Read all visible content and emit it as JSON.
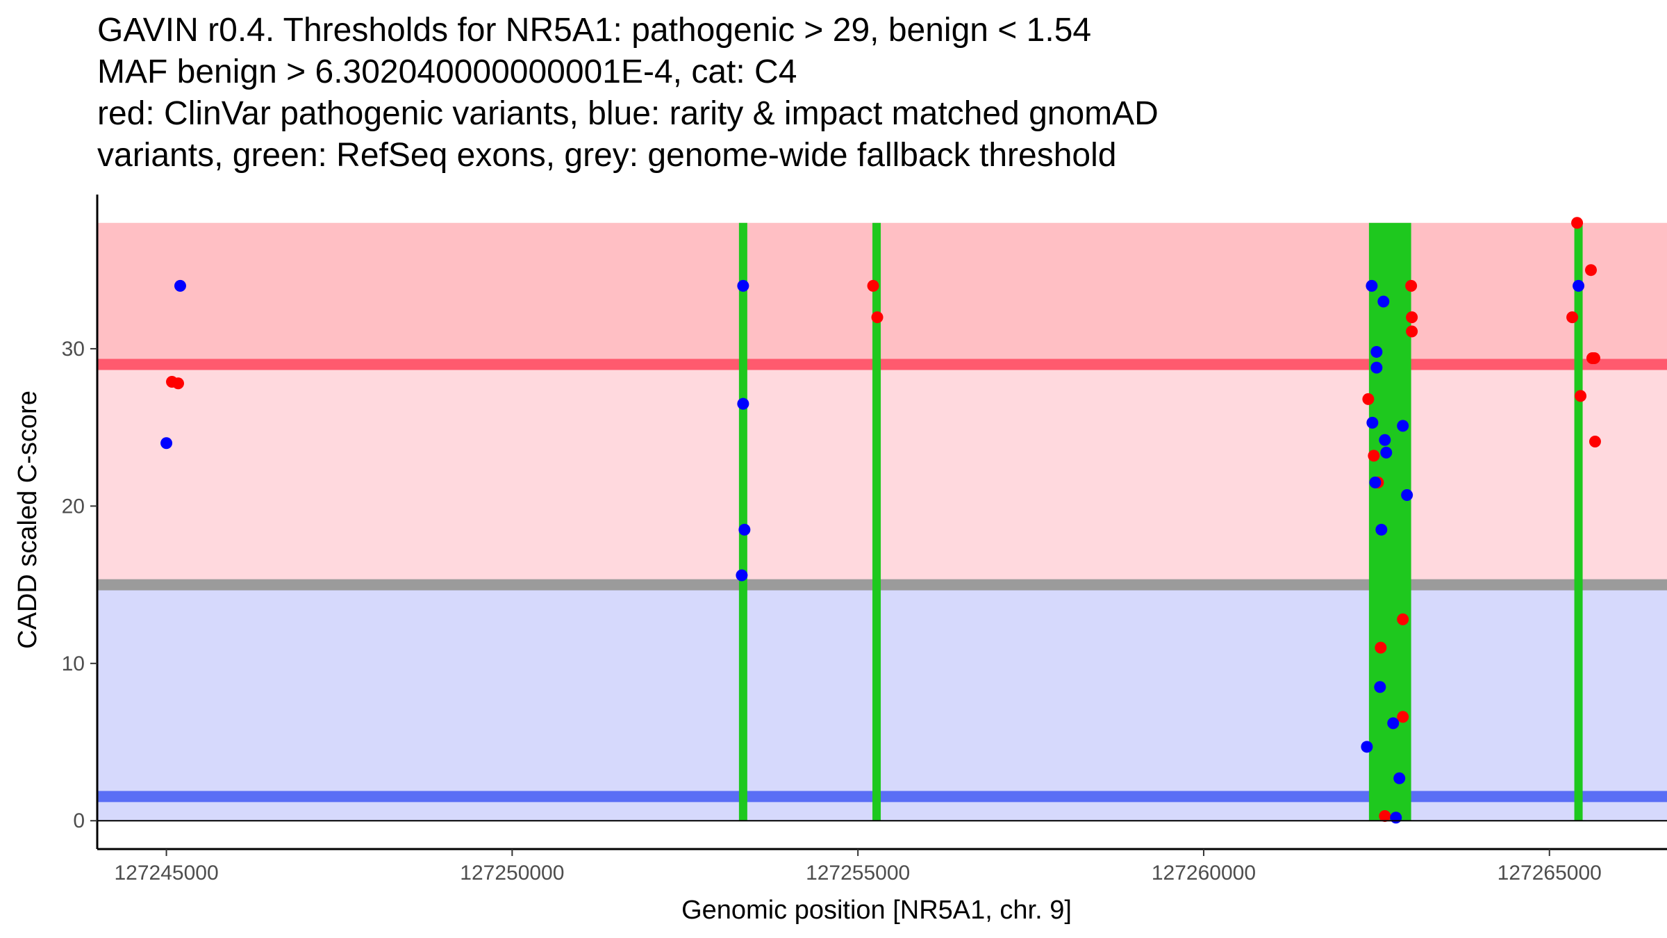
{
  "chart_data": {
    "type": "scatter",
    "title_lines": [
      "GAVIN r0.4. Thresholds for NR5A1: pathogenic > 29, benign < 1.54",
      "MAF benign > 6.302040000000001E-4, cat: C4",
      "red: ClinVar pathogenic variants, blue: rarity & impact matched gnomAD",
      "variants, green: RefSeq exons, grey: genome-wide fallback threshold"
    ],
    "xlabel": "Genomic position [NR5A1, chr. 9]",
    "ylabel": "CADD scaled C-score",
    "xlim": [
      127244000,
      127266700
    ],
    "ylim": [
      -1.8,
      39.8
    ],
    "x_ticks": [
      127245000,
      127250000,
      127255000,
      127260000,
      127265000
    ],
    "y_ticks": [
      0,
      10,
      20,
      30
    ],
    "x_tick_labels": [
      "127245000",
      "127250000",
      "127255000",
      "127260000",
      "127265000"
    ],
    "y_tick_labels": [
      "0",
      "10",
      "20",
      "30"
    ],
    "colors": {
      "pathogenic_region": "#ffbfc4",
      "vus_region": "#ffd9de",
      "benign_region": "#d6d9fc",
      "pathogenic_line": "#ff5a6e",
      "fallback_line": "#9b9b9b",
      "benign_line": "#5a6ef5",
      "exon": "#1ec81e",
      "clinvar_point": "#ff0000",
      "gnomad_point": "#0000ff"
    },
    "regions": [
      {
        "name": "pathogenic",
        "y0": 29.0,
        "y1": 38.0
      },
      {
        "name": "vus",
        "y0": 15.0,
        "y1": 29.0
      },
      {
        "name": "benign",
        "y0": 0.0,
        "y1": 15.0
      }
    ],
    "thresholds": [
      {
        "name": "pathogenic",
        "y": 29.0
      },
      {
        "name": "genome-wide fallback",
        "y": 15.0
      },
      {
        "name": "benign",
        "y": 1.54
      }
    ],
    "exons": [
      {
        "start": 127253280,
        "end": 127253400
      },
      {
        "start": 127255210,
        "end": 127255330
      },
      {
        "start": 127262390,
        "end": 127263000
      },
      {
        "start": 127265360,
        "end": 127265480
      }
    ],
    "series": [
      {
        "name": "ClinVar pathogenic",
        "points": [
          [
            127245080,
            27.9
          ],
          [
            127245170,
            27.8
          ],
          [
            127255220,
            34.0
          ],
          [
            127255280,
            32.0
          ],
          [
            127262380,
            26.8
          ],
          [
            127262460,
            23.2
          ],
          [
            127262520,
            21.5
          ],
          [
            127262560,
            11.0
          ],
          [
            127262620,
            0.3
          ],
          [
            127262880,
            12.8
          ],
          [
            127262880,
            6.6
          ],
          [
            127263000,
            34.0
          ],
          [
            127263010,
            32.0
          ],
          [
            127263010,
            31.1
          ],
          [
            127265330,
            32.0
          ],
          [
            127265400,
            38.0
          ],
          [
            127265450,
            27.0
          ],
          [
            127265600,
            35.0
          ],
          [
            127265620,
            29.4
          ],
          [
            127265650,
            29.4
          ],
          [
            127265660,
            24.1
          ]
        ]
      },
      {
        "name": "gnomAD matched",
        "points": [
          [
            127245000,
            24.0
          ],
          [
            127245200,
            34.0
          ],
          [
            127253340,
            34.0
          ],
          [
            127253340,
            26.5
          ],
          [
            127253360,
            18.5
          ],
          [
            127253320,
            15.6
          ],
          [
            127262430,
            34.0
          ],
          [
            127262440,
            25.3
          ],
          [
            127262480,
            21.5
          ],
          [
            127262500,
            29.8
          ],
          [
            127262500,
            28.8
          ],
          [
            127262550,
            8.5
          ],
          [
            127262570,
            18.5
          ],
          [
            127262600,
            33.0
          ],
          [
            127262620,
            24.2
          ],
          [
            127262640,
            23.4
          ],
          [
            127262740,
            6.2
          ],
          [
            127262780,
            0.2
          ],
          [
            127262830,
            2.7
          ],
          [
            127262880,
            25.1
          ],
          [
            127262940,
            20.7
          ],
          [
            127262360,
            4.7
          ],
          [
            127265420,
            34.0
          ]
        ]
      }
    ]
  }
}
